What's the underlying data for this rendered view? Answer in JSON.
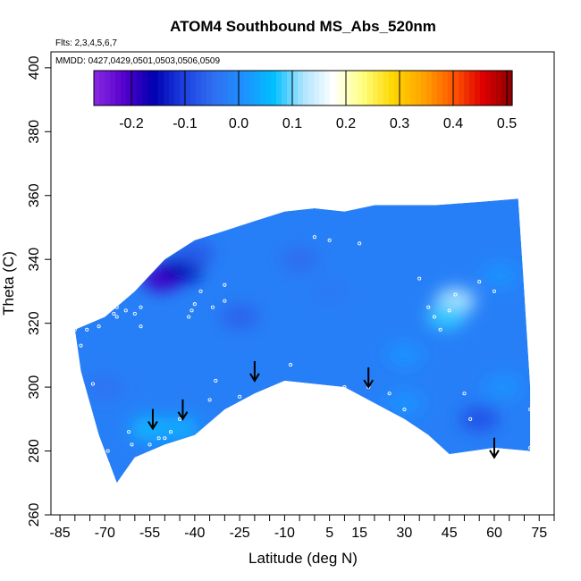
{
  "chart_data": {
    "type": "heatmap",
    "title": "ATOM4 Southbound MS_Abs_520nm",
    "annotations": [
      "Flts: 2,3,4,5,6,7",
      "MMDD: 0427,0429,0501,0503,0506,0509"
    ],
    "xlabel": "Latitude (deg N)",
    "ylabel": "Theta (C)",
    "xlim": [
      -88,
      80
    ],
    "ylim": [
      260,
      405
    ],
    "x_ticks": [
      -85,
      -70,
      -55,
      -40,
      -25,
      -10,
      5,
      15,
      30,
      45,
      60,
      75
    ],
    "x_minor_step": 5,
    "y_ticks": [
      260,
      280,
      300,
      320,
      340,
      360,
      380,
      400
    ],
    "colorbar": {
      "ticks": [
        -0.2,
        -0.1,
        0.0,
        0.1,
        0.2,
        0.3,
        0.4,
        0.5
      ],
      "tick_labels": [
        "-0.2",
        "-0.1",
        "0.0",
        "0.1",
        "0.2",
        "0.3",
        "0.4",
        "0.5"
      ],
      "range": [
        -0.27,
        0.51
      ],
      "colors": [
        "#8a2be2",
        "#5500cc",
        "#0000b0",
        "#1c3fe0",
        "#2f6ff0",
        "#1e90ff",
        "#00bfff",
        "#aee4ff",
        "#ffffff",
        "#ffff80",
        "#ffd700",
        "#ffa500",
        "#ff5a00",
        "#e00000",
        "#8b0000"
      ]
    },
    "background_value": -0.02,
    "field_boundary": [
      [
        -80,
        318
      ],
      [
        -70,
        322
      ],
      [
        -60,
        330
      ],
      [
        -50,
        340
      ],
      [
        -40,
        346
      ],
      [
        -30,
        349
      ],
      [
        -20,
        352
      ],
      [
        -10,
        355
      ],
      [
        0,
        356
      ],
      [
        10,
        355
      ],
      [
        20,
        357
      ],
      [
        30,
        357
      ],
      [
        40,
        357
      ],
      [
        55,
        358
      ],
      [
        68,
        359
      ],
      [
        70,
        330
      ],
      [
        72,
        300
      ],
      [
        72,
        280
      ],
      [
        60,
        281
      ],
      [
        45,
        279
      ],
      [
        38,
        285
      ],
      [
        30,
        290
      ],
      [
        20,
        295
      ],
      [
        10,
        300
      ],
      [
        -10,
        302
      ],
      [
        -20,
        298
      ],
      [
        -30,
        293
      ],
      [
        -40,
        285
      ],
      [
        -50,
        282
      ],
      [
        -60,
        278
      ],
      [
        -66,
        270
      ],
      [
        -72,
        285
      ],
      [
        -78,
        305
      ]
    ],
    "features": [
      {
        "x": -51,
        "y": 334,
        "value": -0.2
      },
      {
        "x": -44,
        "y": 337,
        "value": -0.16
      },
      {
        "x": -40,
        "y": 342,
        "value": -0.07
      },
      {
        "x": -55,
        "y": 287,
        "value": 0.05
      },
      {
        "x": -45,
        "y": 287,
        "value": 0.04
      },
      {
        "x": 47,
        "y": 327,
        "value": 0.12
      },
      {
        "x": 44,
        "y": 322,
        "value": 0.08
      },
      {
        "x": 55,
        "y": 290,
        "value": -0.08
      },
      {
        "x": 30,
        "y": 295,
        "value": 0.01
      },
      {
        "x": 30,
        "y": 310,
        "value": 0.01
      },
      {
        "x": 5,
        "y": 330,
        "value": -0.03
      },
      {
        "x": -70,
        "y": 300,
        "value": -0.04
      },
      {
        "x": 62,
        "y": 335,
        "value": 0.01
      },
      {
        "x": 63,
        "y": 300,
        "value": 0.01
      },
      {
        "x": -25,
        "y": 322,
        "value": -0.06
      },
      {
        "x": -5,
        "y": 340,
        "value": -0.05
      }
    ],
    "sample_points": [
      [
        -80,
        318
      ],
      [
        -78,
        313
      ],
      [
        -76,
        318
      ],
      [
        -74,
        301
      ],
      [
        -72,
        319
      ],
      [
        -69,
        280
      ],
      [
        -69,
        276
      ],
      [
        -69,
        273
      ],
      [
        -67,
        323
      ],
      [
        -66,
        325
      ],
      [
        -66,
        322
      ],
      [
        -65,
        328
      ],
      [
        -63,
        324
      ],
      [
        -62,
        286
      ],
      [
        -61,
        282
      ],
      [
        -60,
        323
      ],
      [
        -58,
        325
      ],
      [
        -56,
        279
      ],
      [
        -55,
        282
      ],
      [
        -52,
        284
      ],
      [
        -50,
        284
      ],
      [
        -48,
        286
      ],
      [
        -45,
        290
      ],
      [
        -42,
        322
      ],
      [
        -41,
        324
      ],
      [
        -40,
        326
      ],
      [
        -38,
        330
      ],
      [
        -35,
        296
      ],
      [
        -34,
        325
      ],
      [
        -33,
        302
      ],
      [
        -30,
        327
      ],
      [
        -30,
        332
      ],
      [
        -25,
        297
      ],
      [
        -8,
        307
      ],
      [
        0,
        347
      ],
      [
        5,
        346
      ],
      [
        10,
        300
      ],
      [
        15,
        345
      ],
      [
        18,
        300
      ],
      [
        25,
        298
      ],
      [
        30,
        293
      ],
      [
        35,
        334
      ],
      [
        38,
        325
      ],
      [
        40,
        322
      ],
      [
        42,
        318
      ],
      [
        45,
        324
      ],
      [
        47,
        329
      ],
      [
        50,
        298
      ],
      [
        52,
        290
      ],
      [
        55,
        333
      ],
      [
        60,
        330
      ],
      [
        72,
        281
      ],
      [
        72,
        293
      ],
      [
        -58,
        319
      ]
    ],
    "arrows": [
      [
        -54,
        287
      ],
      [
        -44,
        290
      ],
      [
        -20,
        302
      ],
      [
        18,
        300
      ],
      [
        60,
        278
      ]
    ]
  }
}
